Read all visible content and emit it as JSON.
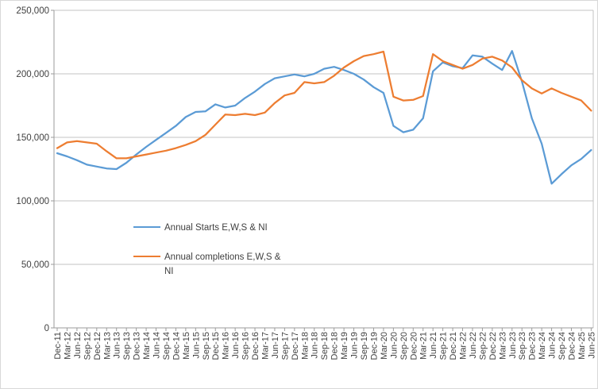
{
  "chart_data": {
    "type": "line",
    "x_labels": [
      "Dec-11",
      "Mar-12",
      "Jun-12",
      "Sep-12",
      "Dec-12",
      "Mar-13",
      "Jun-13",
      "Sep-13",
      "Dec-13",
      "Mar-14",
      "Jun-14",
      "Sep-14",
      "Dec-14",
      "Mar-15",
      "Jun-15",
      "Sep-15",
      "Dec-15",
      "Mar-16",
      "Jun-16",
      "Sep-16",
      "Dec-16",
      "Mar-17",
      "Jun-17",
      "Sep-17",
      "Dec-17",
      "Mar-18",
      "Jun-18",
      "Sep-18",
      "Dec-18",
      "Mar-19",
      "Jun-19",
      "Sep-19",
      "Dec-19",
      "Mar-20",
      "Jun-20",
      "Sep-20",
      "Dec-20",
      "Mar-21",
      "Jun-21",
      "Sep-21",
      "Dec-21",
      "Mar-22",
      "Jun-22",
      "Sep-22",
      "Dec-22",
      "Mar-23",
      "Jun-23",
      "Sep-23",
      "Dec-23",
      "Mar-24",
      "Jun-24",
      "Sep-24",
      "Dec-24",
      "Mar-25",
      "Jun-25"
    ],
    "series": [
      {
        "name": "Annual Starts E,W,S & NI",
        "color": "#5B9BD5",
        "values": [
          137500,
          135000,
          132000,
          128500,
          127000,
          125500,
          125000,
          130000,
          136500,
          142500,
          148000,
          153500,
          159000,
          166000,
          170000,
          170500,
          176000,
          173500,
          175000,
          181000,
          186000,
          192000,
          196500,
          198000,
          199500,
          198000,
          200000,
          204000,
          205500,
          203000,
          200000,
          195500,
          189500,
          185000,
          159000,
          154000,
          156000,
          165000,
          202000,
          209000,
          206000,
          204500,
          214500,
          213500,
          208000,
          203000,
          218000,
          194000,
          165000,
          145000,
          113500,
          121000,
          128000,
          133000,
          140000
        ]
      },
      {
        "name": "Annual completions E,W,S & NI",
        "color": "#ED7D31",
        "values": [
          141500,
          146000,
          147000,
          146000,
          145000,
          139000,
          133500,
          133500,
          135000,
          136500,
          138000,
          139500,
          141500,
          144000,
          147000,
          152000,
          160000,
          168000,
          167500,
          168500,
          167500,
          169500,
          177000,
          183000,
          185000,
          193500,
          192500,
          193500,
          198500,
          205000,
          210000,
          214000,
          215500,
          217500,
          182000,
          179000,
          179500,
          182500,
          215500,
          210000,
          207000,
          204000,
          207000,
          212000,
          213500,
          210500,
          205000,
          195000,
          188500,
          184500,
          188500,
          185000,
          182000,
          179000,
          171000
        ]
      }
    ],
    "ylim": [
      0,
      250000
    ],
    "yticks": [
      0,
      50000,
      100000,
      150000,
      200000,
      250000
    ],
    "ytick_labels": [
      "0",
      "50,000",
      "100,000",
      "150,000",
      "200,000",
      "250,000"
    ],
    "grid": "horizontal",
    "legend_position": "inside-left-middle",
    "colors": {
      "gridline": "#C3C3C3",
      "axis": "#9B9B9B",
      "text": "#404040"
    }
  }
}
